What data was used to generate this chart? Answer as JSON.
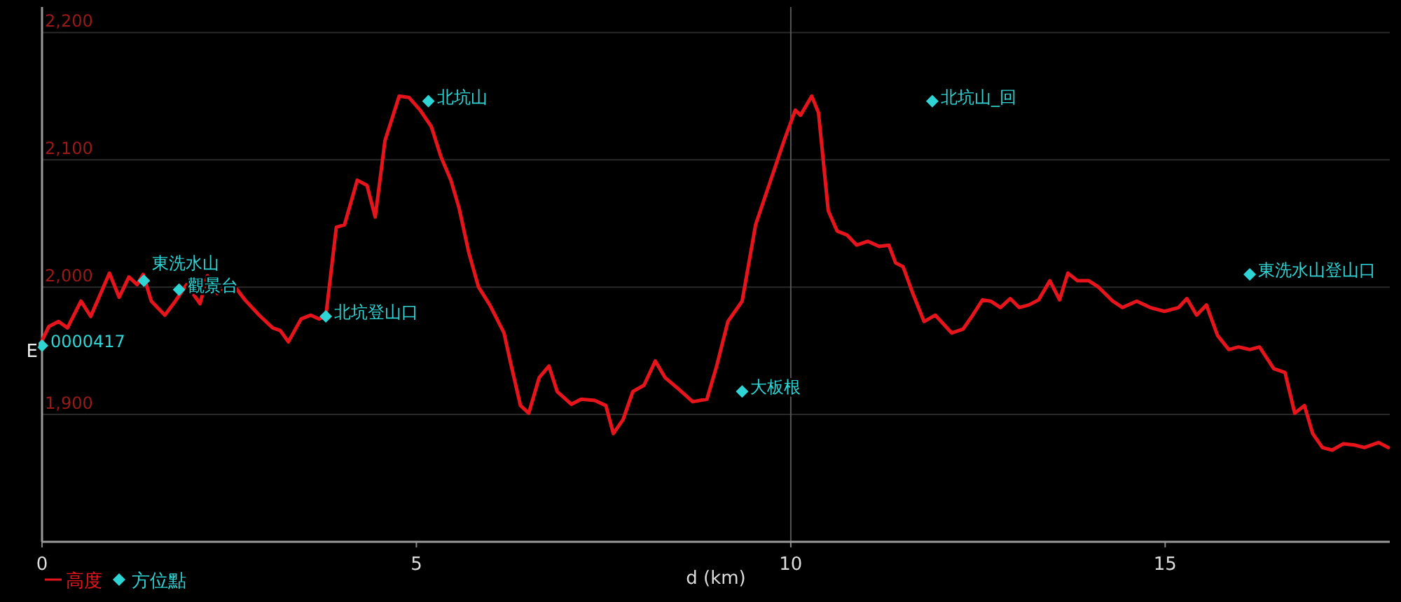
{
  "chart_data": {
    "type": "line",
    "xlabel": "d (km)",
    "xlim": [
      0,
      18
    ],
    "xticks": [
      0,
      5,
      10,
      15
    ],
    "ylim": [
      1800,
      2220
    ],
    "yticks": [
      {
        "value": 1900,
        "label": "1,900"
      },
      {
        "value": 2000,
        "label": "2,000"
      },
      {
        "value": 2100,
        "label": "2,100"
      },
      {
        "value": 2200,
        "label": "2,200"
      }
    ],
    "grid": "y",
    "legend": "bottom left",
    "ref_lines": [
      {
        "axis": "x",
        "value": 10,
        "color": "#555555"
      }
    ],
    "series": [
      {
        "name": "高度",
        "color": "#e8141c",
        "marker": "none",
        "x": [
          0,
          0.09,
          0.22,
          0.34,
          0.52,
          0.65,
          0.9,
          1.03,
          1.16,
          1.27,
          1.35,
          1.46,
          1.64,
          1.78,
          1.93,
          2.11,
          2.21,
          2.34,
          2.43,
          2.58,
          2.71,
          2.9,
          3.08,
          3.18,
          3.29,
          3.46,
          3.59,
          3.7,
          3.79,
          3.93,
          4.04,
          4.21,
          4.34,
          4.45,
          4.58,
          4.77,
          4.9,
          5.05,
          5.2,
          5.33,
          5.46,
          5.57,
          5.7,
          5.83,
          5.98,
          6.17,
          6.26,
          6.39,
          6.5,
          6.64,
          6.77,
          6.88,
          7.07,
          7.2,
          7.38,
          7.53,
          7.63,
          7.76,
          7.89,
          8.04,
          8.19,
          8.32,
          8.5,
          8.69,
          8.88,
          9.01,
          9.16,
          9.35,
          9.53,
          9.72,
          9.91,
          10.06,
          10.13,
          10.28,
          10.37,
          10.5,
          10.62,
          10.75,
          10.88,
          11.03,
          11.18,
          11.31,
          11.4,
          11.5,
          11.63,
          11.78,
          11.93,
          12.15,
          12.3,
          12.43,
          12.56,
          12.67,
          12.8,
          12.93,
          13.05,
          13.18,
          13.31,
          13.46,
          13.59,
          13.7,
          13.83,
          13.98,
          14.11,
          14.3,
          14.43,
          14.62,
          14.8,
          14.99,
          15.18,
          15.29,
          15.42,
          15.55,
          15.7,
          15.85,
          15.98,
          16.13,
          16.26,
          16.45,
          16.6,
          16.73,
          16.86,
          16.97,
          17.1,
          17.23,
          17.38,
          17.53,
          17.66,
          17.85,
          17.98
        ],
        "values": [
          1958,
          1969,
          1973,
          1968,
          1989,
          1977,
          2011,
          1992,
          2008,
          2002,
          2010,
          1989,
          1978,
          1989,
          2002,
          1987,
          2009,
          1995,
          1998,
          2000,
          1990,
          1978,
          1968,
          1966,
          1957,
          1975,
          1978,
          1975,
          1977,
          2047,
          2049,
          2084,
          2080,
          2055,
          2115,
          2150,
          2149,
          2139,
          2126,
          2102,
          2084,
          2062,
          2027,
          2000,
          1986,
          1964,
          1940,
          1907,
          1901,
          1929,
          1938,
          1918,
          1908,
          1912,
          1911,
          1907,
          1885,
          1896,
          1918,
          1923,
          1942,
          1929,
          1920,
          1910,
          1912,
          1938,
          1973,
          1989,
          2049,
          2082,
          2115,
          2139,
          2135,
          2150,
          2137,
          2060,
          2044,
          2041,
          2033,
          2036,
          2032,
          2033,
          2019,
          2016,
          1995,
          1973,
          1978,
          1964,
          1967,
          1978,
          1990,
          1989,
          1984,
          1991,
          1984,
          1986,
          1990,
          2005,
          1990,
          2011,
          2005,
          2005,
          2000,
          1989,
          1984,
          1989,
          1984,
          1981,
          1984,
          1991,
          1978,
          1986,
          1962,
          1951,
          1953,
          1951,
          1953,
          1936,
          1933,
          1901,
          1907,
          1885,
          1874,
          1872,
          1877,
          1876,
          1874,
          1878,
          1874
        ]
      },
      {
        "name": "方位點",
        "type": "scatter",
        "color": "#2fd5d5",
        "marker": "diamond",
        "x": [
          0,
          1.36,
          1.83,
          3.79,
          5.16,
          9.35,
          11.89,
          16.13
        ],
        "values": [
          1954,
          2005,
          1998,
          1977,
          2146,
          1918,
          2146,
          2010
        ]
      }
    ],
    "annotations": [
      {
        "text": "0000417",
        "x": 0,
        "y": 1954
      },
      {
        "text": "東洗水山",
        "x": 1.36,
        "y": 2005
      },
      {
        "text": "觀景台",
        "x": 1.83,
        "y": 1998
      },
      {
        "text": "北坑登山口",
        "x": 3.79,
        "y": 1977
      },
      {
        "text": "北坑山",
        "x": 5.16,
        "y": 2146
      },
      {
        "text": "大板根",
        "x": 9.35,
        "y": 1918
      },
      {
        "text": "北坑山_回",
        "x": 11.89,
        "y": 2146
      },
      {
        "text": "東洗水山登山口",
        "x": 16.13,
        "y": 2010
      },
      {
        "text": "E",
        "x": 0,
        "y": 1954
      }
    ]
  }
}
